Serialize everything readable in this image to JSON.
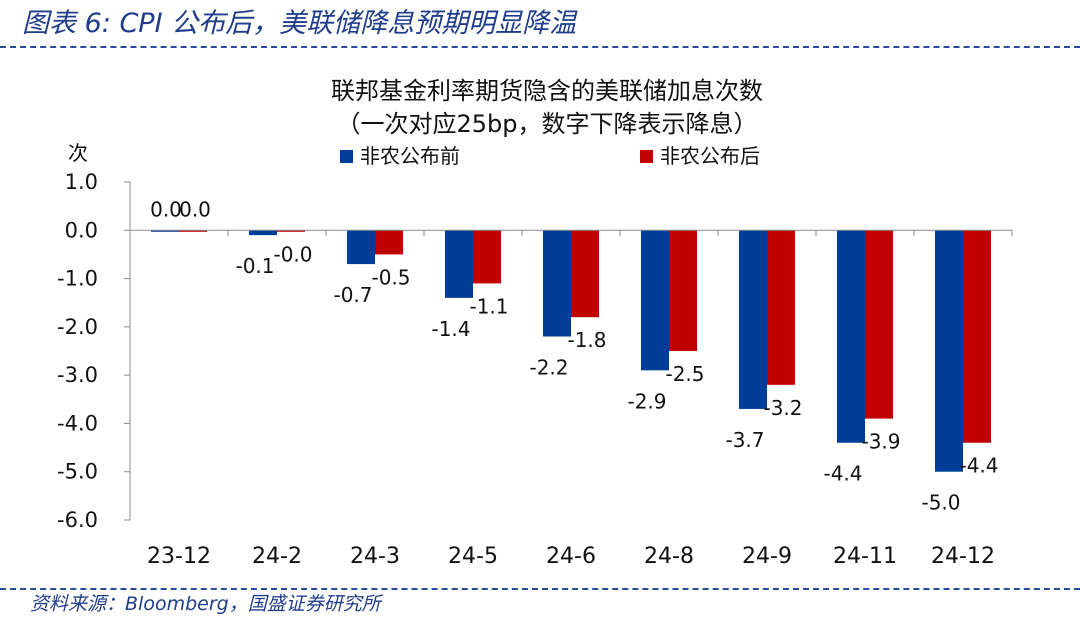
{
  "figure": {
    "title": "图表 6:  CPI 公布后，美联储降息预期明显降温",
    "source": "资料来源：Bloomberg，国盛证券研究所"
  },
  "chart_data": {
    "type": "bar",
    "title": "联邦基金利率期货隐含的美联储加息次数",
    "subtitle": "（一次对应25bp，数字下降表示降息）",
    "ylabel": "次",
    "xlabel": "",
    "categories": [
      "23-12",
      "24-2",
      "24-3",
      "24-5",
      "24-6",
      "24-8",
      "24-9",
      "24-11",
      "24-12"
    ],
    "series": [
      {
        "name": "非农公布前",
        "color": "#003d99",
        "values": [
          0.0,
          -0.1,
          -0.7,
          -1.4,
          -2.2,
          -2.9,
          -3.7,
          -4.4,
          -5.0
        ],
        "labels": [
          "0.0",
          "-0.1",
          "-0.7",
          "-1.4",
          "-2.2",
          "-2.9",
          "-3.7",
          "-4.4",
          "-5.0"
        ]
      },
      {
        "name": "非农公布后",
        "color": "#c00000",
        "values": [
          0.0,
          -0.03,
          -0.5,
          -1.1,
          -1.8,
          -2.5,
          -3.2,
          -3.9,
          -4.4
        ],
        "labels": [
          "0.0",
          "-0.0",
          "-0.5",
          "-1.1",
          "-1.8",
          "-2.5",
          "-3.2",
          "-3.9",
          "-4.4"
        ]
      }
    ],
    "ylim": [
      -6.0,
      1.0
    ],
    "yticks": [
      1.0,
      0.0,
      -1.0,
      -2.0,
      -3.0,
      -4.0,
      -5.0,
      -6.0
    ],
    "ytick_labels": [
      "1.0",
      "0.0",
      "-1.0",
      "-2.0",
      "-3.0",
      "-4.0",
      "-5.0",
      "-6.0"
    ],
    "legend_position": "top",
    "grid": false
  }
}
